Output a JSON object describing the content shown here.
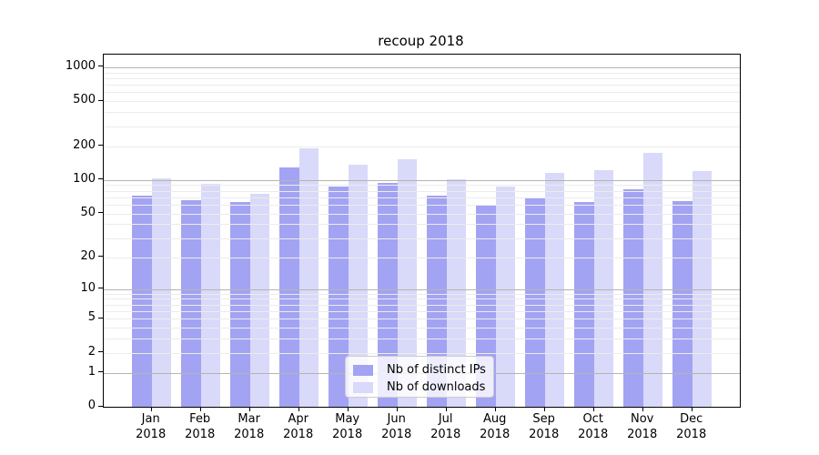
{
  "chart": {
    "title": "recoup 2018"
  },
  "chart_data": {
    "type": "bar",
    "title": "recoup 2018",
    "xlabel": "",
    "ylabel": "",
    "scale": "symlog (y position proportional to ln(1+value))",
    "categories": [
      "Jan",
      "Feb",
      "Mar",
      "Apr",
      "May",
      "Jun",
      "Jul",
      "Aug",
      "Sep",
      "Oct",
      "Nov",
      "Dec"
    ],
    "year_label": "2018",
    "series": [
      {
        "name": "Nb of distinct IPs",
        "color": "#a3a3f3",
        "values": [
          73,
          66,
          63,
          130,
          87,
          95,
          73,
          60,
          68,
          64,
          83,
          65
        ]
      },
      {
        "name": "Nb of downloads",
        "color": "#d9d9f9",
        "values": [
          103,
          92,
          75,
          193,
          138,
          153,
          102,
          88,
          115,
          122,
          175,
          119
        ]
      }
    ],
    "yticks": [
      "1000",
      "500",
      "200",
      "100",
      "50",
      "20",
      "10",
      "5",
      "2",
      "1",
      "0"
    ],
    "ylim": [
      0,
      1270
    ],
    "grid": {
      "major_values": [
        1,
        10,
        100,
        1000
      ],
      "minor_values": [
        2,
        3,
        4,
        5,
        6,
        7,
        8,
        9,
        20,
        30,
        40,
        50,
        60,
        70,
        80,
        90,
        200,
        300,
        400,
        500,
        600,
        700,
        800,
        900
      ],
      "major_color": "#b4b4b4",
      "minor_color": "#ececec"
    },
    "legend": {
      "position": "bottom-center",
      "entries": [
        "Nb of distinct IPs",
        "Nb of downloads"
      ]
    }
  }
}
